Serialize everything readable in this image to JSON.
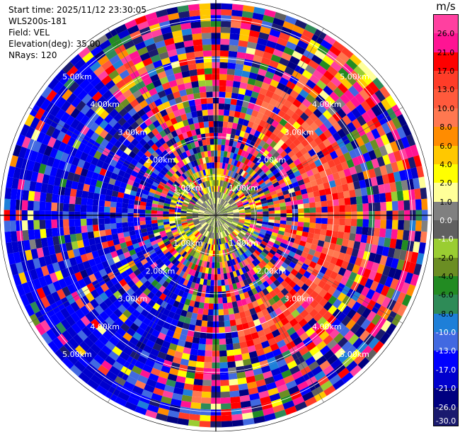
{
  "info": {
    "start_time": "Start time: 2025/11/12 23:30:05",
    "instrument": "WLS200s-181",
    "field": "Field: VEL",
    "elevation": "Elevation(deg): 35.00",
    "nrays": "NRays: 120"
  },
  "colorbar": {
    "unit": "m/s",
    "labels": [
      "26.0",
      "21.0",
      "17.0",
      "13.0",
      "10.0",
      "8.0",
      "6.0",
      "4.0",
      "2.0",
      "1.0",
      "0.0",
      "-1.0",
      "-2.0",
      "-4.0",
      "-6.0",
      "-8.0",
      "-10.0",
      "-13.0",
      "-17.0",
      "-21.0",
      "-26.0",
      "-30.0"
    ],
    "colors": [
      "#ff40a0",
      "#ff1493",
      "#ff0000",
      "#ff3c28",
      "#ff5a3c",
      "#ff7850",
      "#ff8c00",
      "#ffc800",
      "#ffff00",
      "#ffff99",
      "#808080",
      "#606060",
      "#9acd32",
      "#6b8e23",
      "#228b22",
      "#2e8b57",
      "#1e7fd8",
      "#4169e1",
      "#0000ff",
      "#0000cd",
      "#000080",
      "#1a1a6e"
    ]
  },
  "chart_data": {
    "type": "heatmap",
    "title": "",
    "projection": "polar (PPI)",
    "field": "VEL",
    "units": "m/s",
    "nrays": 120,
    "elevation_deg": 35.0,
    "range_rings_km": [
      1.0,
      2.0,
      3.0,
      4.0,
      5.0
    ],
    "ring_labels": [
      "1.00km",
      "2.00km",
      "3.00km",
      "4.00km",
      "5.00km"
    ],
    "max_range_km": 5.5,
    "gate_spacing_km": 0.15,
    "color_scale": {
      "bounds": [
        -30,
        -26,
        -21,
        -17,
        -13,
        -10,
        -8,
        -6,
        -4,
        -2,
        -1,
        0,
        1,
        2,
        4,
        6,
        8,
        10,
        13,
        17,
        21,
        26,
        30
      ]
    },
    "spokes_deg": [
      0,
      30,
      60,
      90,
      120,
      150,
      180,
      210,
      240,
      270,
      300,
      330
    ],
    "description_ranges": [
      {
        "region": "near center (<0.6km)",
        "values": [
          -2,
          2
        ]
      },
      {
        "region": "east arc 2.5–3.5km",
        "values": [
          8,
          17
        ]
      },
      {
        "region": "west/southwest sector",
        "values": [
          -21,
          -13
        ]
      }
    ]
  }
}
